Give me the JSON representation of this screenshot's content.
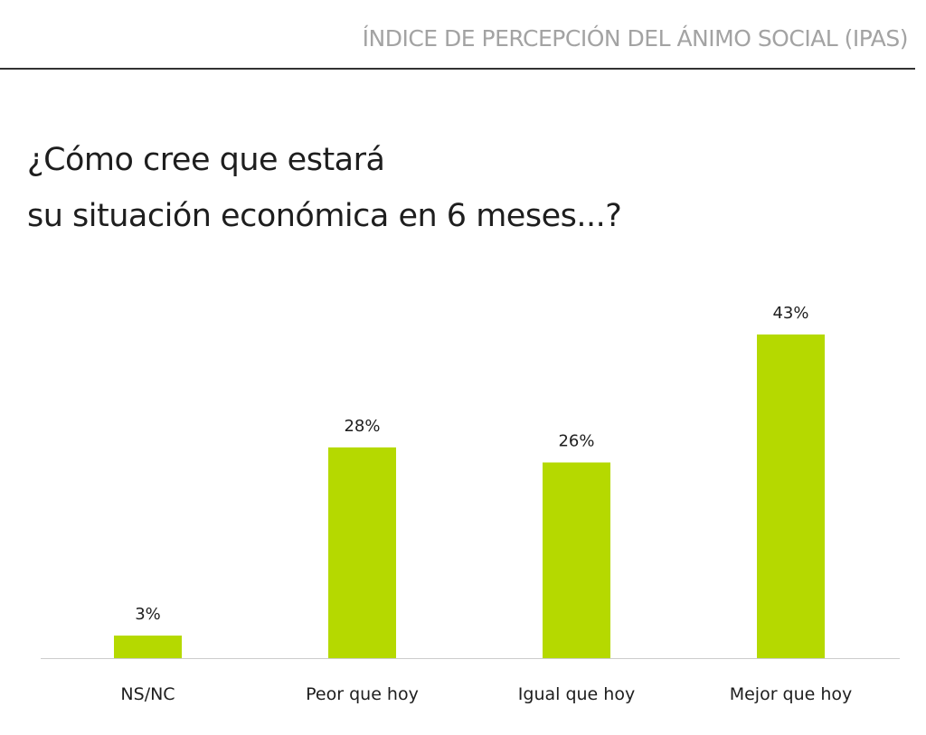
{
  "header": {
    "title": "ÍNDICE DE PERCEPCIÓN DEL ÁNIMO SOCIAL (IPAS)"
  },
  "question": {
    "line1": "¿Cómo cree que estará",
    "line2": "su situación económica en 6 meses...?"
  },
  "colors": {
    "bar": "#b5d900",
    "axis": "#cccccc"
  },
  "chart_data": {
    "type": "bar",
    "title": "¿Cómo cree que estará su situación económica en 6 meses...?",
    "categories": [
      "NS/NC",
      "Peor que hoy",
      "Igual que hoy",
      "Mejor que hoy"
    ],
    "values": [
      3,
      28,
      26,
      43
    ],
    "value_labels": [
      "3%",
      "28%",
      "26%",
      "43%"
    ],
    "unit": "%",
    "ylim": [
      0,
      43
    ],
    "grid": false,
    "legend": "none"
  }
}
